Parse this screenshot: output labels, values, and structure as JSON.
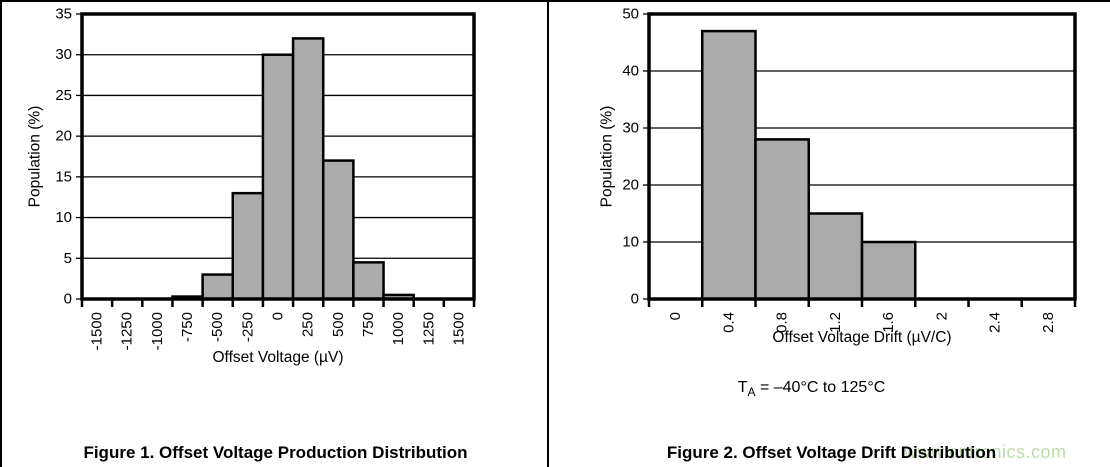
{
  "watermark": {
    "text": "www.cntronics.com",
    "color": "#bcdcab"
  },
  "condition": {
    "base": "T",
    "sub": "A",
    "rest": " = –40°C to 125°C"
  },
  "chart_data": [
    {
      "type": "bar",
      "title": "Figure 1. Offset Voltage Production Distribution",
      "xlabel": "Offset Voltage (µV)",
      "ylabel": "Population (%)",
      "categories": [
        "-1500",
        "-1250",
        "-1000",
        "-750",
        "-500",
        "-250",
        "0",
        "250",
        "500",
        "750",
        "1000",
        "1250",
        "1500"
      ],
      "values": [
        0,
        0,
        0,
        0.3,
        3,
        13,
        30,
        32,
        17,
        4.5,
        0.5,
        0,
        0
      ],
      "ylim": [
        0,
        35
      ],
      "yticks": [
        0,
        5,
        10,
        15,
        20,
        25,
        30,
        35
      ],
      "grid": true,
      "legend": "none",
      "bar_fill": "#ababab",
      "bar_stroke": "#000000",
      "frame_color": "#000000"
    },
    {
      "type": "bar",
      "title": "Figure 2. Offset Voltage Drift Distribution",
      "xlabel": "Offset Voltage Drift (µV/C)",
      "ylabel": "Population (%)",
      "categories": [
        "0",
        "0.4",
        "0.8",
        "1.2",
        "1.6",
        "2",
        "2.4",
        "2.8"
      ],
      "values": [
        0,
        47,
        28,
        15,
        10,
        0,
        0,
        0
      ],
      "ylim": [
        0,
        50
      ],
      "yticks": [
        0,
        10,
        20,
        30,
        40,
        50
      ],
      "grid": true,
      "legend": "none",
      "bar_fill": "#ababab",
      "bar_stroke": "#000000",
      "frame_color": "#000000"
    }
  ]
}
